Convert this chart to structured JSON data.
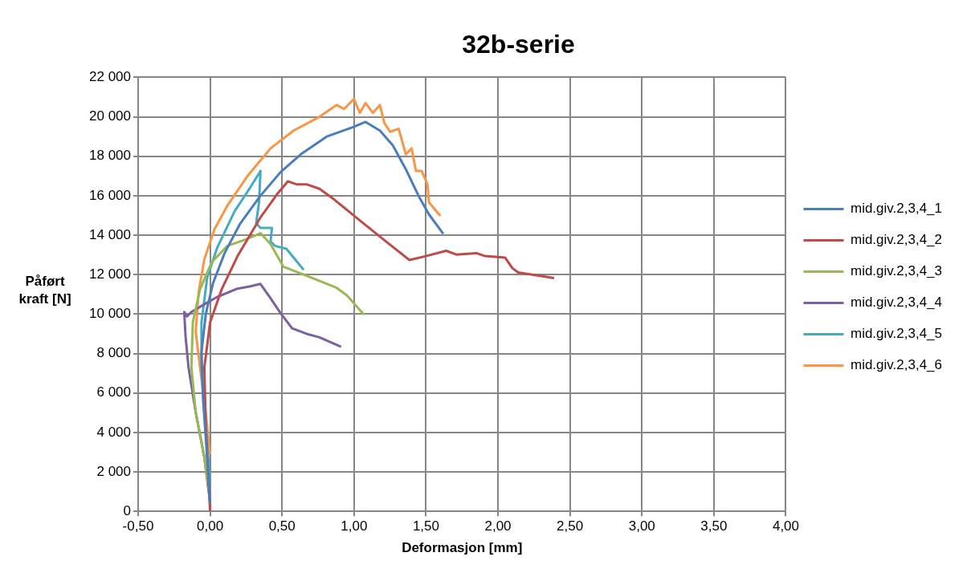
{
  "chart_data": {
    "type": "line",
    "title": "32b-serie",
    "xlabel": "Deformasjon [mm]",
    "ylabel": "Påført kraft [N]",
    "xlim": [
      -0.5,
      4
    ],
    "xticks": [
      {
        "value": -0.5,
        "label": "-0,50"
      },
      {
        "value": 0,
        "label": "0,00"
      },
      {
        "value": 0.5,
        "label": "0,50"
      },
      {
        "value": 1,
        "label": "1,00"
      },
      {
        "value": 1.5,
        "label": "1,50"
      },
      {
        "value": 2,
        "label": "2,00"
      },
      {
        "value": 2.5,
        "label": "2,50"
      },
      {
        "value": 3,
        "label": "3,00"
      },
      {
        "value": 3.5,
        "label": "3,50"
      },
      {
        "value": 4,
        "label": "4,00"
      }
    ],
    "ylim": [
      0,
      22000
    ],
    "yticks": [
      0,
      {
        "value": 2000,
        "label": "2 000"
      },
      {
        "value": 4000,
        "label": "4 000"
      },
      {
        "value": 6000,
        "label": "6 000"
      },
      {
        "value": 8000,
        "label": "8 000"
      },
      {
        "value": 10000,
        "label": "10 000"
      },
      {
        "value": 12000,
        "label": "12 000"
      },
      {
        "value": 14000,
        "label": "14 000"
      },
      {
        "value": 16000,
        "label": "16 000"
      },
      {
        "value": 18000,
        "label": "18 000"
      },
      {
        "value": 20000,
        "label": "20 000"
      },
      {
        "value": 22000,
        "label": "22 000"
      }
    ],
    "grid": true,
    "legend": "right",
    "marker": "none",
    "line_style": "solid",
    "series": [
      {
        "name": "mid.giv.2,3,4_1",
        "color": "#4a7ebb",
        "x": [
          0,
          -0.02,
          -0.05,
          -0.06,
          -0.03,
          0.02,
          0.1,
          0.21,
          0.35,
          0.49,
          0.63,
          0.81,
          0.99,
          1.08,
          1.18,
          1.27,
          1.36,
          1.45,
          1.52,
          1.62
        ],
        "values": [
          450,
          2700,
          5800,
          8060,
          10000,
          11560,
          13080,
          14600,
          16000,
          17200,
          18100,
          19000,
          19470,
          19740,
          19300,
          18550,
          17340,
          15970,
          15060,
          14070
        ]
      },
      {
        "name": "mid.giv.2,3,4_2",
        "color": "#be4b48",
        "x": [
          0,
          -0.03,
          -0.04,
          0,
          0.08,
          0.19,
          0.35,
          0.47,
          0.54,
          0.6,
          0.67,
          0.76,
          0.86,
          1.04,
          1.22,
          1.385,
          1.5,
          1.64,
          1.71,
          1.85,
          1.91,
          2.05,
          2.1,
          2.14,
          2.39
        ],
        "values": [
          0,
          4260,
          7300,
          9580,
          11250,
          12930,
          14900,
          16120,
          16730,
          16580,
          16580,
          16350,
          15820,
          14750,
          13690,
          12740,
          12940,
          13210,
          13020,
          13090,
          12940,
          12860,
          12330,
          12110,
          11830
        ]
      },
      {
        "name": "mid.giv.2,3,4_3",
        "color": "#98b954",
        "x": [
          0,
          -0.04,
          -0.1,
          -0.13,
          -0.12,
          -0.07,
          0.01,
          0.12,
          0.24,
          0.35,
          0.42,
          0.51,
          0.67,
          0.88,
          0.95,
          1.07
        ],
        "values": [
          530,
          2740,
          5020,
          7300,
          9580,
          11250,
          12620,
          13460,
          13760,
          14100,
          13540,
          12400,
          11940,
          11330,
          10950,
          9960
        ]
      },
      {
        "name": "mid.giv.2,3,4_4",
        "color": "#7d60a0",
        "x": [
          0,
          -0.04,
          -0.1,
          -0.15,
          -0.17,
          -0.18,
          -0.16,
          -0.13,
          -0.04,
          0.05,
          0.19,
          0.28,
          0.35,
          0.42,
          0.49,
          0.57,
          0.67,
          0.76,
          0.91
        ],
        "values": [
          450,
          2740,
          5020,
          7300,
          8820,
          10110,
          9880,
          10110,
          10500,
          10870,
          11290,
          11410,
          11530,
          10800,
          10040,
          9280,
          9000,
          8820,
          8340
        ]
      },
      {
        "name": "mid.giv.2,3,4_5",
        "color": "#46aac5",
        "x": [
          0,
          -0.03,
          -0.06,
          -0.06,
          -0.02,
          0.05,
          0.17,
          0.28,
          0.35,
          0.34,
          0.32,
          0.35,
          0.43,
          0.42,
          0.45,
          0.53,
          0.65
        ],
        "values": [
          1520,
          4260,
          7300,
          9580,
          11860,
          13380,
          15210,
          16430,
          17260,
          15670,
          14600,
          14370,
          14370,
          13690,
          13460,
          13310,
          12240
        ]
      },
      {
        "name": "mid.giv.2,3,4_6",
        "color": "#f79646",
        "x": [
          0,
          -0.03,
          -0.07,
          -0.1,
          -0.08,
          -0.04,
          0.03,
          0.12,
          0.26,
          0.42,
          0.58,
          0.76,
          0.88,
          0.93,
          1,
          1.04,
          1.08,
          1.13,
          1.18,
          1.21,
          1.25,
          1.31,
          1.36,
          1.4,
          1.43,
          1.47,
          1.51,
          1.52,
          1.59,
          1.6
        ],
        "values": [
          2900,
          5000,
          7300,
          9100,
          11100,
          12780,
          14300,
          15500,
          17000,
          18400,
          19300,
          20000,
          20600,
          20400,
          20900,
          20200,
          20700,
          20200,
          20600,
          19700,
          19240,
          19400,
          18100,
          18400,
          17260,
          17260,
          16580,
          15670,
          15060,
          14980
        ]
      }
    ]
  }
}
